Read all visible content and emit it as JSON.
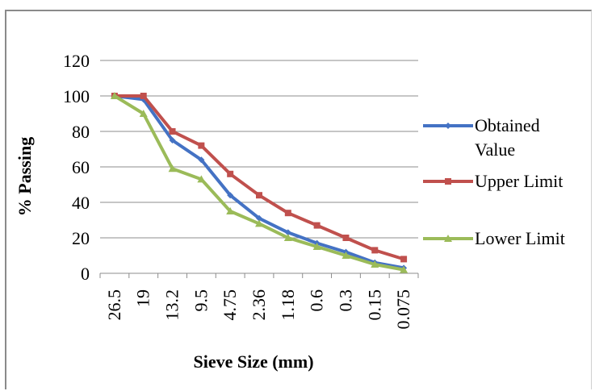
{
  "chart_data": {
    "type": "line",
    "xlabel": "Sieve Size (mm)",
    "ylabel": "% Passing",
    "categories": [
      "26.5",
      "19",
      "13.2",
      "9.5",
      "4.75",
      "2.36",
      "1.18",
      "0.6",
      "0.3",
      "0.15",
      "0.075"
    ],
    "ylim": [
      0,
      120
    ],
    "yticks": [
      0,
      20,
      40,
      60,
      80,
      100,
      120
    ],
    "grid": "horizontal",
    "legend_position": "right",
    "series": [
      {
        "name": "Obtained Value",
        "name_lines": [
          "Obtained",
          "Value"
        ],
        "color": "#4472C4",
        "marker": "diamond",
        "values": [
          100,
          98,
          75,
          64,
          44,
          31,
          23,
          17,
          12,
          6,
          3
        ]
      },
      {
        "name": "Upper Limit",
        "name_lines": [
          "Upper Limit"
        ],
        "color": "#C0504D",
        "marker": "square",
        "values": [
          100,
          100,
          80,
          72,
          56,
          44,
          34,
          27,
          20,
          13,
          8
        ]
      },
      {
        "name": "Lower Limit",
        "name_lines": [
          "Lower Limit"
        ],
        "color": "#9BBB59",
        "marker": "triangle",
        "values": [
          100,
          90,
          59,
          53,
          35,
          28,
          20,
          15,
          10,
          5,
          2
        ]
      }
    ]
  }
}
